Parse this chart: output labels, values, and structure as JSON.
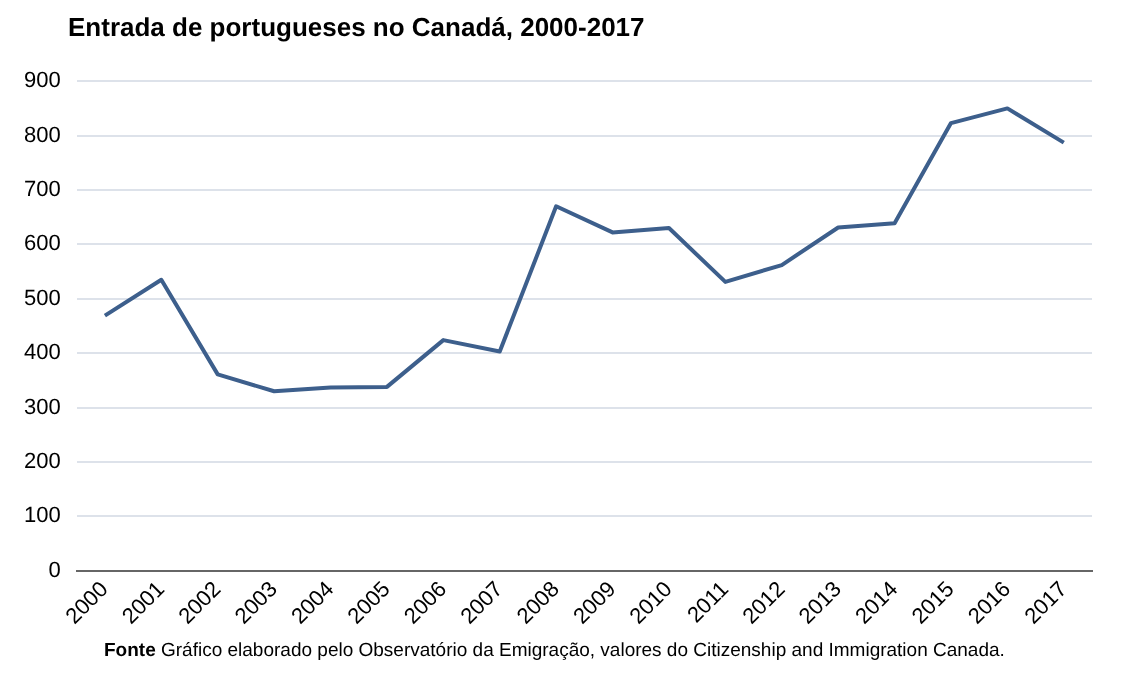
{
  "chart_data": {
    "type": "line",
    "title": "Entrada de portugueses no Canadá, 2000-2017",
    "categories": [
      "2000",
      "2001",
      "2002",
      "2003",
      "2004",
      "2005",
      "2006",
      "2007",
      "2008",
      "2009",
      "2010",
      "2011",
      "2012",
      "2013",
      "2014",
      "2015",
      "2016",
      "2017"
    ],
    "series": [
      {
        "color": "#3d5f8c",
        "values": [
          469,
          535,
          361,
          330,
          337,
          338,
          424,
          403,
          670,
          622,
          630,
          531,
          562,
          631,
          639,
          823,
          850,
          787
        ]
      }
    ],
    "ylim": [
      0,
      900
    ],
    "yticks": [
      0,
      100,
      200,
      300,
      400,
      500,
      600,
      700,
      800,
      900
    ],
    "grid": "y",
    "legend": false,
    "marker": "none",
    "line_style": "solid",
    "annotations": [
      "Fonte  Gráfico elaborado pelo Observatório da Emigração, valores do Citizenship and Immigration Canada."
    ]
  }
}
